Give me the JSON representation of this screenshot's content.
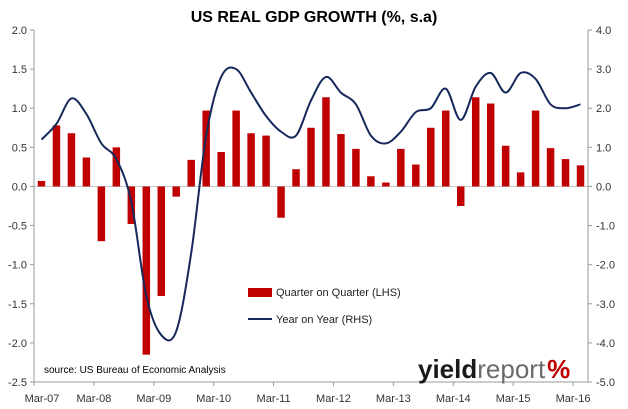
{
  "chart_data": {
    "type": "bar+line",
    "title": "US REAL GDP GROWTH (%, s.a)",
    "source": "source: US Bureau of Economic Analysis",
    "logo": {
      "part1": "yield",
      "part2": "report",
      "part3": "%"
    },
    "y_left": {
      "ylim": [
        -2.5,
        2.0
      ],
      "ticks": [
        "2.0",
        "1.5",
        "1.0",
        "0.5",
        "0.0",
        "-0.5",
        "-1.0",
        "-1.5",
        "-2.0",
        "-2.5"
      ]
    },
    "y_right": {
      "ylim": [
        -5.0,
        4.0
      ],
      "ticks": [
        "4.0",
        "3.0",
        "2.0",
        "1.0",
        "0.0",
        "-1.0",
        "-2.0",
        "-3.0",
        "-4.0",
        "-5.0"
      ]
    },
    "x_tick_labels": [
      "Mar-07",
      "Mar-08",
      "Mar-09",
      "Mar-10",
      "Mar-11",
      "Mar-12",
      "Mar-13",
      "Mar-14",
      "Mar-15",
      "Mar-16"
    ],
    "colors": {
      "bar": "#c00000",
      "line": "#17285c",
      "axis": "#999999"
    },
    "series": [
      {
        "name": "Quarter on Quarter (LHS)",
        "kind": "bar",
        "axis": "left",
        "values": [
          0.07,
          0.78,
          0.68,
          0.37,
          -0.7,
          0.5,
          -0.48,
          -2.15,
          -1.4,
          -0.13,
          0.34,
          0.97,
          0.44,
          0.97,
          0.68,
          0.65,
          -0.4,
          0.22,
          0.75,
          1.14,
          0.67,
          0.48,
          0.13,
          0.05,
          0.48,
          0.28,
          0.75,
          0.97,
          -0.25,
          1.14,
          1.06,
          0.52,
          0.18,
          0.97,
          0.49,
          0.35,
          0.27
        ]
      },
      {
        "name": "Year on Year (RHS)",
        "kind": "line",
        "axis": "right",
        "values": [
          1.2,
          1.6,
          2.25,
          1.85,
          1.1,
          0.7,
          -0.4,
          -2.8,
          -3.8,
          -3.7,
          -1.7,
          1.3,
          2.8,
          3.0,
          2.4,
          1.8,
          1.4,
          1.3,
          2.2,
          2.8,
          2.4,
          2.1,
          1.3,
          1.1,
          1.4,
          1.9,
          2.0,
          2.5,
          1.7,
          2.55,
          2.9,
          2.4,
          2.9,
          2.75,
          2.1,
          2.0,
          2.1
        ]
      }
    ]
  }
}
